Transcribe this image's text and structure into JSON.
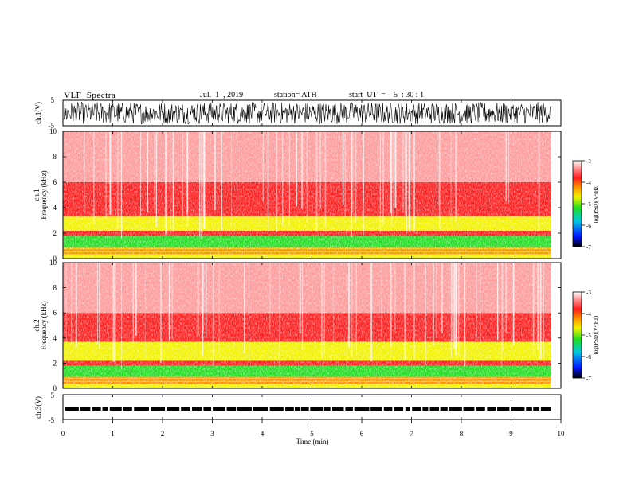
{
  "header": {
    "title": "VLF  Spectra",
    "date": "Jul.  1  , 2019",
    "station": "station= ATH",
    "start": "start  UT  =    5  : 30 : 1"
  },
  "chart_data": [
    {
      "type": "line",
      "name": "ch1-waveform",
      "ylabel": "ch.1(V)",
      "ylim": [
        -5,
        5
      ],
      "yticks": [
        "5",
        "-5"
      ],
      "xlim": [
        0,
        10
      ],
      "note_visible_data_end_min": 9.8
    },
    {
      "type": "heatmap",
      "name": "ch1-spectrogram",
      "ylabel_line1": "ch.1",
      "ylabel_line2": "Frequency  (kHz)",
      "ylim": [
        0,
        10
      ],
      "yticks": [
        "0",
        "2",
        "4",
        "6",
        "8",
        "10"
      ],
      "xlim": [
        0,
        10
      ],
      "colorbar": {
        "label": "log(PSD)(V²/Hz)",
        "range": [
          -7,
          -3
        ],
        "ticks": [
          "-3",
          "-4",
          "-5",
          "-6",
          "-7"
        ]
      },
      "bands_khz": [
        {
          "from": 0,
          "to": 0.35,
          "level": -4.6
        },
        {
          "from": 0.35,
          "to": 0.9,
          "level": -4.1
        },
        {
          "from": 0.9,
          "to": 1.8,
          "level": -5.0
        },
        {
          "from": 1.8,
          "to": 2.2,
          "level": -4.0
        },
        {
          "from": 2.2,
          "to": 3.3,
          "level": -4.5
        },
        {
          "from": 3.3,
          "to": 6.0,
          "level": -3.9
        },
        {
          "from": 6.0,
          "to": 10,
          "level": -3.5
        }
      ]
    },
    {
      "type": "heatmap",
      "name": "ch2-spectrogram",
      "ylabel_line1": "ch.2",
      "ylabel_line2": "Frequency  (kHz)",
      "ylim": [
        0,
        10
      ],
      "yticks": [
        "0",
        "2",
        "4",
        "6",
        "8",
        "10"
      ],
      "xlim": [
        0,
        10
      ],
      "colorbar": {
        "label": "log(PSD)(V²/Hz)",
        "range": [
          -7,
          -3
        ],
        "ticks": [
          "-3",
          "-4",
          "-5",
          "-6",
          "-7"
        ]
      },
      "bands_khz": [
        {
          "from": 0,
          "to": 0.35,
          "level": -4.6
        },
        {
          "from": 0.35,
          "to": 0.9,
          "level": -4.2
        },
        {
          "from": 0.9,
          "to": 1.8,
          "level": -5.0
        },
        {
          "from": 1.8,
          "to": 2.2,
          "level": -4.0
        },
        {
          "from": 2.2,
          "to": 3.7,
          "level": -4.5
        },
        {
          "from": 3.7,
          "to": 6.0,
          "level": -3.9
        },
        {
          "from": 6.0,
          "to": 10,
          "level": -3.5
        }
      ]
    },
    {
      "type": "line",
      "name": "ch3-waveform",
      "ylabel": "ch.3(V)",
      "ylim": [
        -5,
        5
      ],
      "yticks": [
        "5",
        "-5"
      ],
      "xlim": [
        0,
        10
      ],
      "level_v": -0.8,
      "xlabel": "Time  (min)",
      "xticks": [
        "0",
        "1",
        "2",
        "3",
        "4",
        "5",
        "6",
        "7",
        "8",
        "9",
        "10"
      ]
    }
  ],
  "palette": {
    "white": "#ffffff",
    "pink": "#ff9a9a",
    "red": "#ff1e1e",
    "orange": "#ff8c00",
    "yellow": "#f2f200",
    "green": "#22dd22",
    "cyan": "#00c8e0",
    "blue": "#0018ff",
    "black": "#000000"
  }
}
